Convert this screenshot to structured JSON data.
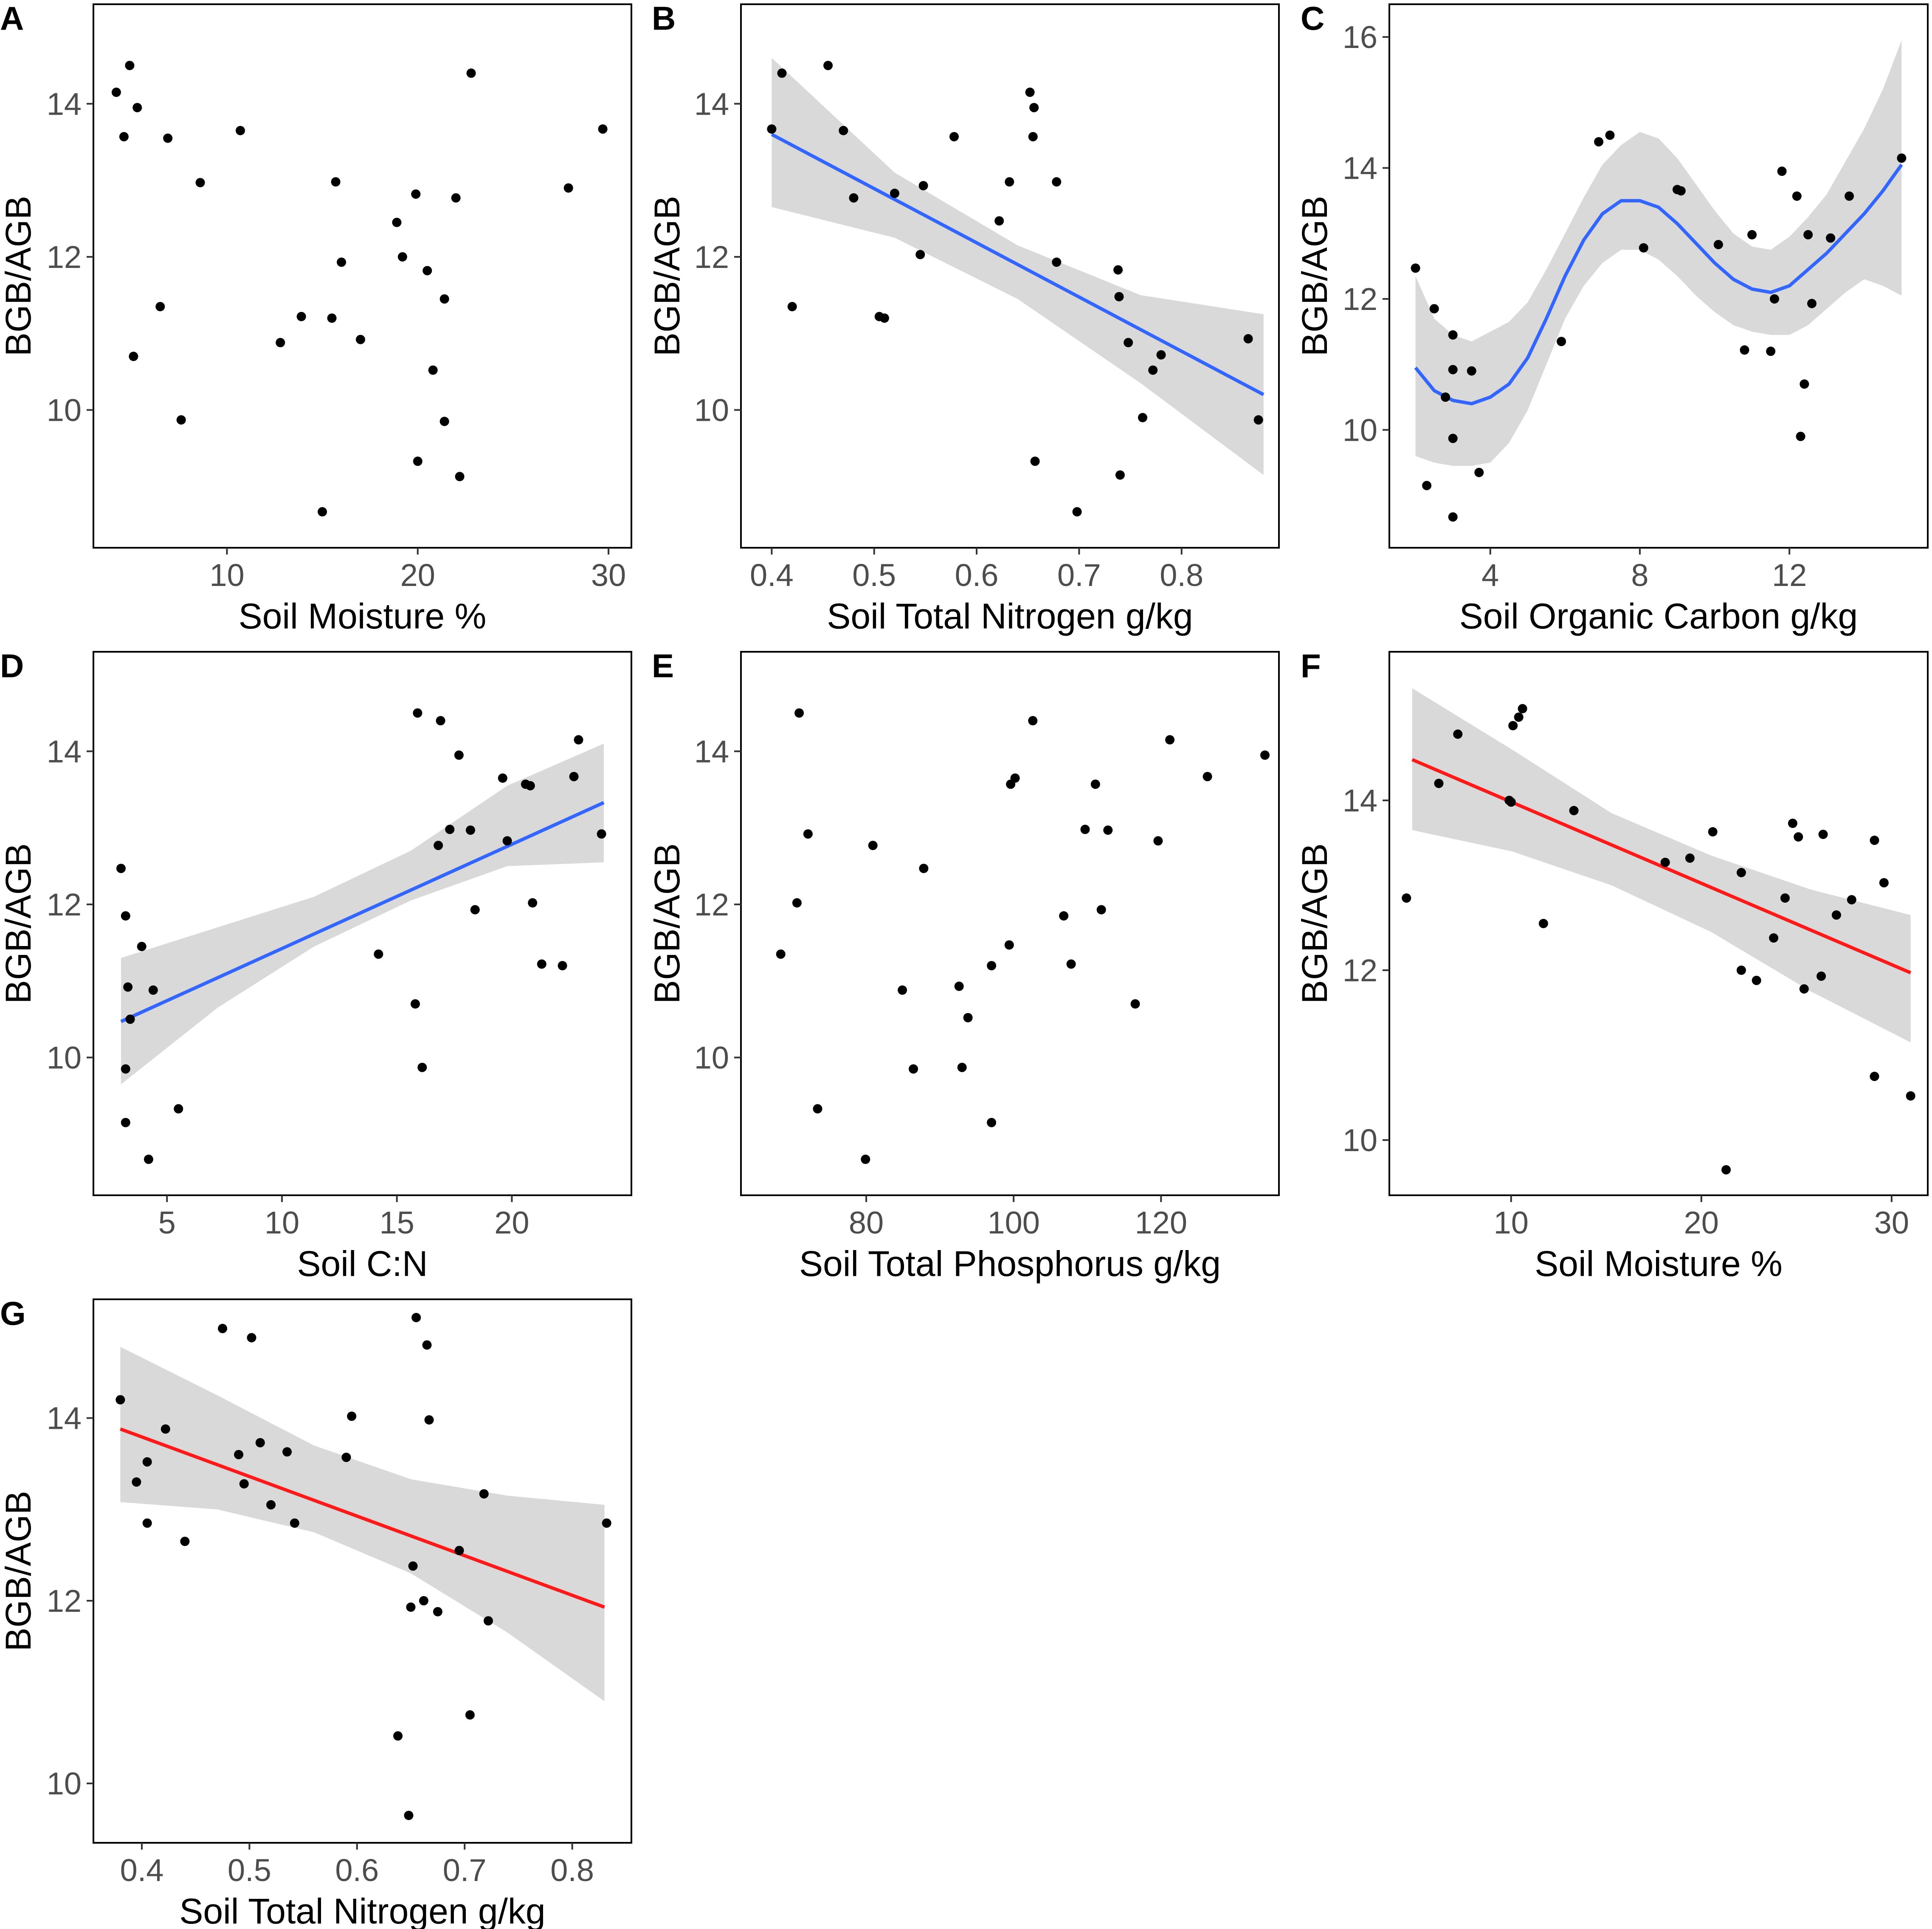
{
  "figure": {
    "colors": {
      "point": "#000000",
      "band": "#d9d9d9",
      "blue_line": "#3366ff",
      "red_line": "#ff1a1a"
    }
  },
  "chart_data": [
    {
      "panel": "A",
      "type": "scatter",
      "xlabel": "Soil Moisture %",
      "ylabel": "BGB/AGB",
      "xlim": [
        3,
        31.2
      ],
      "ylim": [
        8.2,
        15.3
      ],
      "xticks": [
        10,
        20,
        30
      ],
      "yticks": [
        10,
        12,
        14
      ],
      "fit": "none",
      "points": [
        [
          4.2,
          14.15
        ],
        [
          4.6,
          13.57
        ],
        [
          4.9,
          14.5
        ],
        [
          5.1,
          10.7
        ],
        [
          5.3,
          13.95
        ],
        [
          6.5,
          11.35
        ],
        [
          6.9,
          13.55
        ],
        [
          7.6,
          9.87
        ],
        [
          8.6,
          12.97
        ],
        [
          10.7,
          13.65
        ],
        [
          12.8,
          10.88
        ],
        [
          13.9,
          11.22
        ],
        [
          15.0,
          8.67
        ],
        [
          15.5,
          11.2
        ],
        [
          15.7,
          12.98
        ],
        [
          16.0,
          11.93
        ],
        [
          17.0,
          10.92
        ],
        [
          18.9,
          12.45
        ],
        [
          19.2,
          12.0
        ],
        [
          19.9,
          12.82
        ],
        [
          20.0,
          9.33
        ],
        [
          20.5,
          11.82
        ],
        [
          20.8,
          10.52
        ],
        [
          21.4,
          11.45
        ],
        [
          21.4,
          9.85
        ],
        [
          22.0,
          12.77
        ],
        [
          22.2,
          9.13
        ],
        [
          22.8,
          14.4
        ],
        [
          27.9,
          12.9
        ],
        [
          29.7,
          13.67
        ]
      ]
    },
    {
      "panel": "B",
      "type": "scatter",
      "xlabel": "Soil Total Nitrogen g/kg",
      "ylabel": "BGB/AGB",
      "xlim": [
        0.37,
        0.895
      ],
      "ylim": [
        8.2,
        15.3
      ],
      "xticks": [
        0.4,
        0.5,
        0.6,
        0.7,
        0.8
      ],
      "yticks": [
        10,
        12,
        14
      ],
      "fit": "linear",
      "line": {
        "x": [
          0.4,
          0.88
        ],
        "y": [
          13.6,
          10.2
        ]
      },
      "band": {
        "x": [
          0.4,
          0.52,
          0.64,
          0.76,
          0.88
        ],
        "lower": [
          12.65,
          12.25,
          11.45,
          10.35,
          9.15
        ],
        "upper": [
          14.6,
          13.1,
          12.15,
          11.5,
          11.25
        ]
      },
      "points": [
        [
          0.4,
          13.67
        ],
        [
          0.41,
          14.4
        ],
        [
          0.42,
          11.35
        ],
        [
          0.455,
          14.5
        ],
        [
          0.47,
          13.65
        ],
        [
          0.48,
          12.77
        ],
        [
          0.505,
          11.22
        ],
        [
          0.51,
          11.2
        ],
        [
          0.52,
          12.83
        ],
        [
          0.545,
          12.03
        ],
        [
          0.548,
          12.93
        ],
        [
          0.578,
          13.57
        ],
        [
          0.622,
          12.47
        ],
        [
          0.632,
          12.98
        ],
        [
          0.652,
          14.15
        ],
        [
          0.655,
          13.57
        ],
        [
          0.656,
          13.95
        ],
        [
          0.657,
          9.33
        ],
        [
          0.678,
          12.98
        ],
        [
          0.678,
          11.93
        ],
        [
          0.698,
          8.67
        ],
        [
          0.738,
          11.83
        ],
        [
          0.739,
          11.48
        ],
        [
          0.74,
          9.15
        ],
        [
          0.748,
          10.88
        ],
        [
          0.762,
          9.9
        ],
        [
          0.772,
          10.52
        ],
        [
          0.78,
          10.72
        ],
        [
          0.865,
          10.93
        ],
        [
          0.875,
          9.87
        ]
      ]
    },
    {
      "panel": "C",
      "type": "scatter",
      "xlabel": "Soil Organic Carbon g/kg",
      "ylabel": "BGB/AGB",
      "xlim": [
        1.3,
        15.7
      ],
      "ylim": [
        8.2,
        16.5
      ],
      "xticks": [
        4,
        8,
        12
      ],
      "yticks": [
        10,
        12,
        14,
        16
      ],
      "fit": "loess",
      "line": {
        "x": [
          2.0,
          2.5,
          3.0,
          3.5,
          4.0,
          4.5,
          5.0,
          5.5,
          6.0,
          6.5,
          7.0,
          7.5,
          8.0,
          8.5,
          9.0,
          9.5,
          10.0,
          10.5,
          11.0,
          11.5,
          12.0,
          12.5,
          13.0,
          13.5,
          14.0,
          14.5,
          15.0
        ],
        "y": [
          10.95,
          10.6,
          10.45,
          10.4,
          10.5,
          10.7,
          11.1,
          11.7,
          12.35,
          12.9,
          13.3,
          13.5,
          13.5,
          13.4,
          13.15,
          12.85,
          12.55,
          12.3,
          12.15,
          12.1,
          12.2,
          12.45,
          12.7,
          13.0,
          13.3,
          13.65,
          14.05
        ]
      },
      "band": {
        "x": [
          2.0,
          2.5,
          3.0,
          3.5,
          4.0,
          4.5,
          5.0,
          5.5,
          6.0,
          6.5,
          7.0,
          7.5,
          8.0,
          8.5,
          9.0,
          9.5,
          10.0,
          10.5,
          11.0,
          11.5,
          12.0,
          12.5,
          13.0,
          13.5,
          14.0,
          14.5,
          15.0
        ],
        "lower": [
          9.6,
          9.5,
          9.45,
          9.45,
          9.5,
          9.8,
          10.3,
          11.0,
          11.7,
          12.2,
          12.55,
          12.75,
          12.75,
          12.6,
          12.35,
          12.05,
          11.8,
          11.6,
          11.5,
          11.45,
          11.45,
          11.6,
          11.85,
          12.1,
          12.3,
          12.2,
          12.05
        ],
        "upper": [
          12.35,
          11.7,
          11.45,
          11.35,
          11.5,
          11.65,
          11.95,
          12.45,
          13.0,
          13.55,
          14.05,
          14.35,
          14.55,
          14.45,
          14.15,
          13.75,
          13.35,
          13.0,
          12.8,
          12.75,
          12.95,
          13.25,
          13.6,
          14.1,
          14.6,
          15.2,
          15.95
        ]
      },
      "points": [
        [
          2.0,
          12.47
        ],
        [
          2.5,
          11.85
        ],
        [
          2.3,
          9.15
        ],
        [
          2.8,
          10.5
        ],
        [
          3.0,
          11.45
        ],
        [
          3.0,
          10.92
        ],
        [
          3.0,
          9.87
        ],
        [
          3.0,
          8.67
        ],
        [
          3.5,
          10.9
        ],
        [
          3.7,
          9.35
        ],
        [
          5.9,
          11.35
        ],
        [
          6.9,
          14.4
        ],
        [
          7.2,
          14.5
        ],
        [
          8.1,
          12.78
        ],
        [
          9.0,
          13.67
        ],
        [
          9.1,
          13.65
        ],
        [
          10.1,
          12.83
        ],
        [
          10.8,
          11.22
        ],
        [
          11.0,
          12.98
        ],
        [
          11.5,
          11.2
        ],
        [
          11.6,
          12.0
        ],
        [
          11.8,
          13.95
        ],
        [
          12.2,
          13.57
        ],
        [
          12.3,
          9.9
        ],
        [
          12.4,
          10.7
        ],
        [
          12.5,
          12.98
        ],
        [
          12.6,
          11.93
        ],
        [
          13.1,
          12.93
        ],
        [
          13.6,
          13.57
        ],
        [
          15.0,
          14.15
        ]
      ]
    },
    {
      "panel": "D",
      "type": "scatter",
      "xlabel": "Soil C:N",
      "ylabel": "BGB/AGB",
      "xlim": [
        1.8,
        25.2
      ],
      "ylim": [
        8.2,
        15.3
      ],
      "xticks": [
        5,
        10,
        15,
        20
      ],
      "yticks": [
        10,
        12,
        14
      ],
      "fit": "linear",
      "line": {
        "x": [
          3.0,
          24.0
        ],
        "y": [
          10.47,
          13.33
        ]
      },
      "band": {
        "x": [
          3.0,
          7.2,
          11.4,
          15.6,
          19.8,
          24.0
        ],
        "lower": [
          9.65,
          10.65,
          11.45,
          12.05,
          12.5,
          12.55
        ],
        "upper": [
          11.3,
          11.7,
          12.1,
          12.7,
          13.55,
          14.1
        ]
      },
      "points": [
        [
          3.0,
          12.47
        ],
        [
          3.2,
          11.85
        ],
        [
          3.3,
          10.92
        ],
        [
          3.4,
          10.5
        ],
        [
          3.2,
          9.85
        ],
        [
          3.2,
          9.15
        ],
        [
          3.9,
          11.45
        ],
        [
          4.2,
          8.67
        ],
        [
          4.4,
          10.88
        ],
        [
          5.5,
          9.33
        ],
        [
          14.2,
          11.35
        ],
        [
          15.8,
          10.7
        ],
        [
          15.9,
          14.5
        ],
        [
          16.1,
          9.87
        ],
        [
          16.8,
          12.77
        ],
        [
          16.9,
          14.4
        ],
        [
          17.3,
          12.98
        ],
        [
          17.7,
          13.95
        ],
        [
          18.2,
          12.97
        ],
        [
          18.4,
          11.93
        ],
        [
          19.6,
          13.65
        ],
        [
          19.8,
          12.83
        ],
        [
          20.6,
          13.57
        ],
        [
          20.8,
          13.55
        ],
        [
          20.9,
          12.02
        ],
        [
          21.3,
          11.22
        ],
        [
          22.2,
          11.2
        ],
        [
          22.7,
          13.67
        ],
        [
          22.9,
          14.15
        ],
        [
          23.9,
          12.92
        ]
      ]
    },
    {
      "panel": "E",
      "type": "scatter",
      "xlabel": "Soil Total Phosphorus g/kg",
      "ylabel": "BGB/AGB",
      "xlim": [
        63,
        136
      ],
      "ylim": [
        8.2,
        15.3
      ],
      "xticks": [
        80,
        100,
        120
      ],
      "yticks": [
        10,
        12,
        14
      ],
      "fit": "none",
      "points": [
        [
          68.4,
          11.35
        ],
        [
          70.6,
          12.02
        ],
        [
          70.9,
          14.5
        ],
        [
          72.1,
          12.92
        ],
        [
          73.4,
          9.33
        ],
        [
          79.9,
          8.67
        ],
        [
          80.9,
          12.77
        ],
        [
          84.9,
          10.88
        ],
        [
          86.4,
          9.85
        ],
        [
          87.8,
          12.47
        ],
        [
          92.6,
          10.93
        ],
        [
          93.0,
          9.87
        ],
        [
          93.8,
          10.52
        ],
        [
          97.0,
          11.2
        ],
        [
          97.0,
          9.15
        ],
        [
          99.4,
          11.47
        ],
        [
          99.6,
          13.57
        ],
        [
          100.2,
          13.65
        ],
        [
          102.6,
          14.4
        ],
        [
          106.8,
          11.85
        ],
        [
          107.8,
          11.22
        ],
        [
          109.7,
          12.98
        ],
        [
          111.1,
          13.57
        ],
        [
          111.9,
          11.93
        ],
        [
          112.8,
          12.97
        ],
        [
          116.5,
          10.7
        ],
        [
          119.6,
          12.83
        ],
        [
          121.2,
          14.15
        ],
        [
          126.3,
          13.67
        ],
        [
          134.1,
          13.95
        ]
      ]
    },
    {
      "panel": "F",
      "type": "scatter",
      "xlabel": "Soil Moisture %",
      "ylabel": "BGB/AGB",
      "xlim": [
        3.6,
        31.9
      ],
      "ylim": [
        9.35,
        15.75
      ],
      "xticks": [
        10,
        20,
        30
      ],
      "yticks": [
        10,
        12,
        14
      ],
      "fit": "linear",
      "line": {
        "x": [
          4.8,
          31.0
        ],
        "y": [
          14.48,
          11.97
        ]
      },
      "band": {
        "x": [
          4.8,
          10.04,
          15.28,
          20.52,
          25.76,
          31.0
        ],
        "lower": [
          13.65,
          13.4,
          13.0,
          12.45,
          11.75,
          11.15
        ],
        "upper": [
          15.32,
          14.6,
          13.85,
          13.35,
          12.95,
          12.65
        ]
      },
      "points": [
        [
          4.5,
          12.85
        ],
        [
          6.2,
          14.2
        ],
        [
          7.2,
          14.78
        ],
        [
          9.9,
          14.0
        ],
        [
          10.0,
          13.98
        ],
        [
          10.1,
          14.88
        ],
        [
          10.4,
          14.98
        ],
        [
          10.6,
          15.08
        ],
        [
          11.7,
          12.55
        ],
        [
          13.3,
          13.88
        ],
        [
          18.1,
          13.27
        ],
        [
          19.4,
          13.32
        ],
        [
          20.6,
          13.63
        ],
        [
          21.3,
          9.65
        ],
        [
          22.1,
          13.15
        ],
        [
          22.1,
          12.0
        ],
        [
          22.9,
          11.88
        ],
        [
          23.8,
          12.38
        ],
        [
          24.4,
          12.85
        ],
        [
          24.8,
          13.73
        ],
        [
          25.1,
          13.57
        ],
        [
          25.4,
          11.78
        ],
        [
          26.3,
          11.93
        ],
        [
          26.4,
          13.6
        ],
        [
          27.1,
          12.65
        ],
        [
          27.9,
          12.83
        ],
        [
          29.1,
          13.53
        ],
        [
          29.1,
          10.75
        ],
        [
          29.6,
          13.03
        ],
        [
          31.0,
          10.52
        ]
      ]
    },
    {
      "panel": "G",
      "type": "scatter",
      "xlabel": "Soil Total Nitrogen g/kg",
      "ylabel": "BGB/AGB",
      "xlim": [
        0.355,
        0.855
      ],
      "ylim": [
        9.35,
        15.3
      ],
      "xticks": [
        0.4,
        0.5,
        0.6,
        0.7,
        0.8
      ],
      "yticks": [
        10,
        12,
        14
      ],
      "fit": "linear",
      "line": {
        "x": [
          0.38,
          0.83
        ],
        "y": [
          13.88,
          11.93
        ]
      },
      "band": {
        "x": [
          0.38,
          0.47,
          0.56,
          0.65,
          0.74,
          0.83
        ],
        "lower": [
          13.08,
          13.0,
          12.75,
          12.3,
          11.65,
          10.9
        ],
        "upper": [
          14.78,
          14.25,
          13.7,
          13.33,
          13.15,
          13.05
        ]
      },
      "points": [
        [
          0.38,
          14.2
        ],
        [
          0.395,
          13.3
        ],
        [
          0.405,
          13.52
        ],
        [
          0.405,
          12.85
        ],
        [
          0.422,
          13.88
        ],
        [
          0.44,
          12.65
        ],
        [
          0.475,
          14.98
        ],
        [
          0.49,
          13.6
        ],
        [
          0.495,
          13.28
        ],
        [
          0.502,
          14.88
        ],
        [
          0.51,
          13.73
        ],
        [
          0.52,
          13.05
        ],
        [
          0.535,
          13.63
        ],
        [
          0.542,
          12.85
        ],
        [
          0.59,
          13.57
        ],
        [
          0.595,
          14.02
        ],
        [
          0.638,
          10.52
        ],
        [
          0.648,
          9.65
        ],
        [
          0.65,
          11.93
        ],
        [
          0.652,
          12.38
        ],
        [
          0.655,
          15.1
        ],
        [
          0.662,
          12.0
        ],
        [
          0.665,
          14.8
        ],
        [
          0.667,
          13.98
        ],
        [
          0.675,
          11.88
        ],
        [
          0.695,
          12.55
        ],
        [
          0.705,
          10.75
        ],
        [
          0.718,
          13.17
        ],
        [
          0.722,
          11.78
        ],
        [
          0.832,
          12.85
        ]
      ]
    }
  ]
}
